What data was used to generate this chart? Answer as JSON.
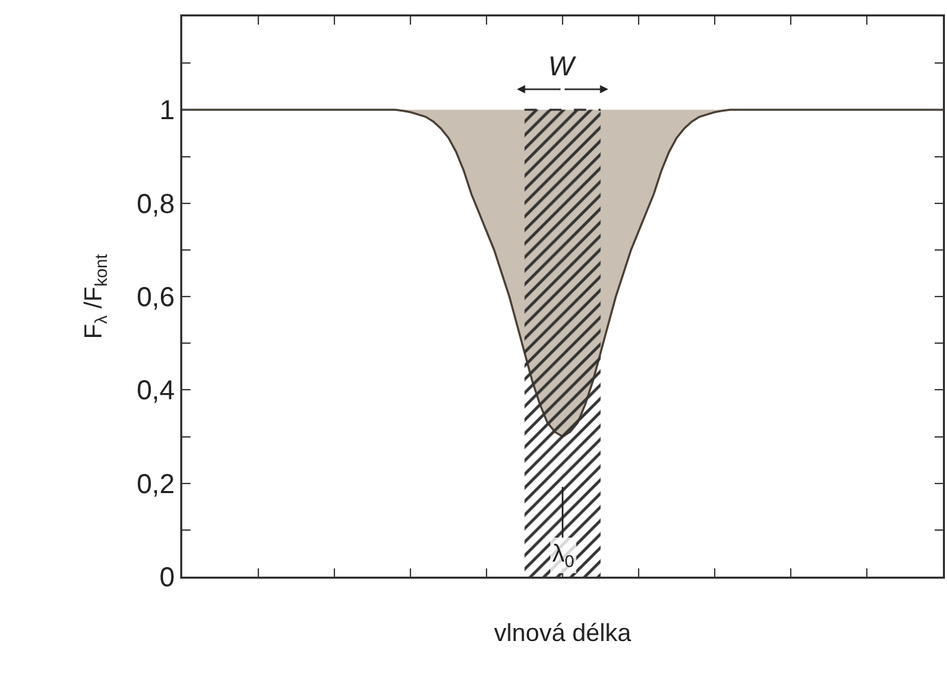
{
  "chart_data": {
    "type": "line",
    "xlabel": "vlnová délka",
    "ylabel": "F$_{λ}$ /F$_{kont}$",
    "categories": [
      null,
      null,
      null,
      null,
      null,
      null,
      null,
      null,
      null,
      null,
      null,
      null,
      null,
      null,
      null,
      null,
      null,
      null,
      null,
      null,
      null,
      null,
      null,
      null,
      null,
      null,
      null,
      null,
      null,
      null,
      null,
      null,
      null,
      null,
      null,
      null,
      null,
      null,
      null,
      null,
      null,
      null,
      null,
      null,
      null,
      null,
      null,
      null,
      null,
      null,
      null,
      null,
      null,
      null,
      null,
      null,
      null,
      null,
      null,
      null,
      null,
      null,
      null,
      null,
      null,
      null,
      null,
      null,
      null,
      null,
      null,
      null,
      null,
      null,
      null,
      null,
      null,
      null,
      null,
      null,
      null,
      null,
      null,
      null,
      null,
      null,
      null,
      null,
      null,
      null,
      null,
      null,
      null,
      null,
      null,
      null,
      null,
      null,
      null,
      null,
      null
    ],
    "series": [
      {
        "color": "#4a3f35",
        "values": [
          1,
          1,
          1,
          1,
          1,
          1,
          1,
          1,
          1,
          1,
          1,
          1,
          1,
          1,
          1,
          1,
          1,
          1,
          1,
          1,
          1,
          1,
          1,
          1,
          1,
          1,
          1,
          1,
          1,
          0.998,
          0.995,
          0.99,
          0.985,
          0.975,
          0.96,
          0.94,
          0.91,
          0.87,
          0.82,
          0.78,
          0.74,
          0.7,
          0.65,
          0.6,
          0.54,
          0.48,
          0.42,
          0.37,
          0.33,
          0.31,
          0.3,
          0.31,
          0.33,
          0.37,
          0.42,
          0.48,
          0.54,
          0.6,
          0.65,
          0.7,
          0.74,
          0.78,
          0.82,
          0.87,
          0.91,
          0.94,
          0.96,
          0.975,
          0.985,
          0.99,
          0.995,
          0.998,
          1,
          1,
          1,
          1,
          1,
          1,
          1,
          1,
          1,
          1,
          1,
          1,
          1,
          1,
          1,
          1,
          1,
          1,
          1,
          1,
          1,
          1,
          1,
          1,
          1,
          1,
          1,
          1,
          1
        ]
      },
      {
        "type": "area",
        "color": "#333333",
        "values": [
          null,
          null,
          null,
          null,
          null,
          null,
          null,
          null,
          null,
          null,
          null,
          null,
          null,
          null,
          null,
          null,
          null,
          null,
          null,
          null,
          null,
          null,
          null,
          null,
          null,
          null,
          null,
          null,
          null,
          null,
          null,
          null,
          null,
          null,
          null,
          null,
          null,
          null,
          null,
          null,
          null,
          null,
          null,
          null,
          null,
          1,
          1,
          1,
          1,
          1,
          1,
          1,
          1,
          1,
          1,
          1,
          null,
          null,
          null,
          null,
          null,
          null,
          null,
          null,
          null,
          null,
          null,
          null,
          null,
          null,
          null,
          null,
          null,
          null,
          null,
          null,
          null,
          null,
          null,
          null,
          null,
          null,
          null,
          null,
          null,
          null,
          null,
          null,
          null,
          null,
          null,
          null,
          null,
          null,
          null,
          null,
          null,
          null,
          null,
          null,
          null
        ]
      }
    ],
    "ylim": [
      0,
      1.2
    ],
    "yticks": [
      {
        "value": 0,
        "label": "0"
      },
      {
        "value": 0.1,
        "label": null
      },
      {
        "value": 0.2,
        "label": "0,2"
      },
      {
        "value": 0.3,
        "label": null
      },
      {
        "value": 0.4,
        "label": "0,4"
      },
      {
        "value": 0.5,
        "label": null
      },
      {
        "value": 0.6,
        "label": "0,6"
      },
      {
        "value": 0.7,
        "label": null
      },
      {
        "value": 0.8,
        "label": "0,8"
      },
      {
        "value": 0.9,
        "label": null
      },
      {
        "value": 1,
        "label": "1"
      },
      {
        "value": 1.1,
        "label": null
      }
    ],
    "annotations": [
      "W",
      "λ$_{0}$"
    ],
    "grid": false
  }
}
